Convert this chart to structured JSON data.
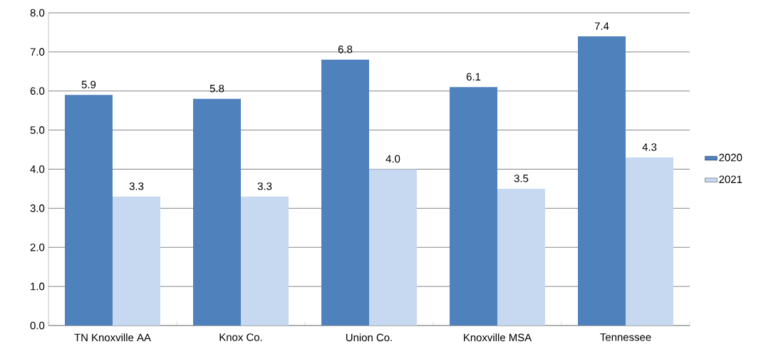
{
  "chart_data": {
    "type": "bar",
    "categories": [
      "TN Knoxville AA",
      "Knox Co.",
      "Union Co.",
      "Knoxville MSA",
      "Tennessee"
    ],
    "series": [
      {
        "name": "2020",
        "color": "#4f81bd",
        "values": [
          5.9,
          5.8,
          6.8,
          6.1,
          7.4
        ],
        "value_labels": [
          "5.9",
          "5.8",
          "6.8",
          "6.1",
          "7.4"
        ]
      },
      {
        "name": "2021",
        "color": "#c6d9f1",
        "values": [
          3.3,
          3.3,
          4.0,
          3.5,
          4.3
        ],
        "value_labels": [
          "3.3",
          "3.3",
          "4.0",
          "3.5",
          "4.3"
        ]
      }
    ],
    "ylim": [
      0,
      8
    ],
    "yticks": [
      {
        "value": 0,
        "label": "0.0"
      },
      {
        "value": 1,
        "label": "1.0"
      },
      {
        "value": 2,
        "label": "2.0"
      },
      {
        "value": 3,
        "label": "3.0"
      },
      {
        "value": 4,
        "label": "4.0"
      },
      {
        "value": 5,
        "label": "5.0"
      },
      {
        "value": 6,
        "label": "6.0"
      },
      {
        "value": 7,
        "label": "7.0"
      },
      {
        "value": 8,
        "label": "8.0"
      }
    ],
    "grid": "y",
    "legend": "right"
  }
}
